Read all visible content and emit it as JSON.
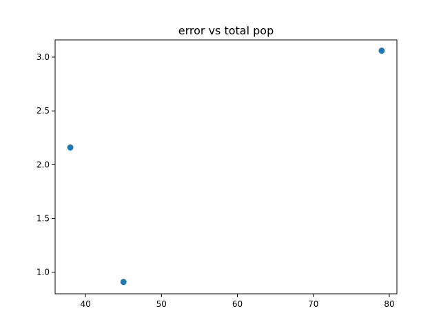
{
  "chart_data": {
    "type": "scatter",
    "title": "error vs total pop",
    "xlabel": "",
    "ylabel": "",
    "x": [
      38,
      45,
      79
    ],
    "y": [
      2.16,
      0.91,
      3.06
    ],
    "xlim": [
      36.0,
      81.0
    ],
    "ylim": [
      0.8,
      3.16
    ],
    "xticks": [
      40,
      50,
      60,
      70,
      80
    ],
    "yticks": [
      1.0,
      1.5,
      2.0,
      2.5,
      3.0
    ],
    "xtick_labels": [
      "40",
      "50",
      "60",
      "70",
      "80"
    ],
    "ytick_labels": [
      "1.0",
      "1.5",
      "2.0",
      "2.5",
      "3.0"
    ],
    "marker_color": "#1f77b4",
    "grid": false,
    "legend": "none"
  }
}
